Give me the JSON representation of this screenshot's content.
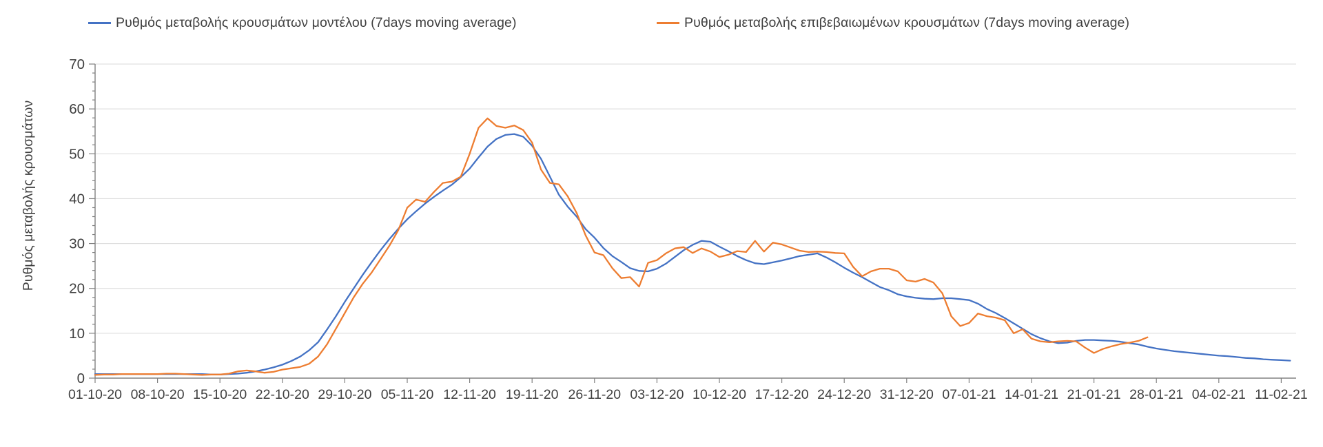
{
  "legend": {
    "items": [
      {
        "label": "Ρυθμός μεταβολής κρουσμάτων μοντέλου (7days moving average)",
        "color": "#4472C4"
      },
      {
        "label": "Ρυθμός μεταβολής επιβεβαιωμένων κρουσμάτων (7days moving average)",
        "color": "#ED7D31"
      }
    ]
  },
  "y_axis": {
    "title": "Ρυθμός μεταβολής κρουσμάτων",
    "ticks": [
      0,
      10,
      20,
      30,
      40,
      50,
      60,
      70
    ]
  },
  "x_axis": {
    "tick_labels": [
      "01-10-20",
      "08-10-20",
      "15-10-20",
      "22-10-20",
      "29-10-20",
      "05-11-20",
      "12-11-20",
      "19-11-20",
      "26-11-20",
      "03-12-20",
      "10-12-20",
      "17-12-20",
      "24-12-20",
      "31-12-20",
      "07-01-21",
      "14-01-21",
      "21-01-21",
      "28-01-21",
      "04-02-21",
      "11-02-21"
    ]
  },
  "colors": {
    "grid": "#D9D9D9",
    "axis": "#808080",
    "text": "#404040",
    "model_series": "#4472C4",
    "confirmed_series": "#ED7D31"
  },
  "chart_data": {
    "type": "line",
    "title": "",
    "xlabel": "",
    "ylabel": "Ρυθμός μεταβολής κρουσμάτων",
    "ylim": [
      0,
      70
    ],
    "y_ticks": [
      0,
      10,
      20,
      30,
      40,
      50,
      60,
      70
    ],
    "grid": "horizontal-only",
    "legend_position": "top",
    "x_start": "01-10-20",
    "x_step_days": 1,
    "x_tick_labels": [
      "01-10-20",
      "08-10-20",
      "15-10-20",
      "22-10-20",
      "29-10-20",
      "05-11-20",
      "12-11-20",
      "19-11-20",
      "26-11-20",
      "03-12-20",
      "10-12-20",
      "17-12-20",
      "24-12-20",
      "31-12-20",
      "07-01-21",
      "14-01-21",
      "21-01-21",
      "28-01-21",
      "04-02-21",
      "11-02-21"
    ],
    "series": [
      {
        "name": "Ρυθμός μεταβολής κρουσμάτων μοντέλου (7days moving average)",
        "color": "#4472C4",
        "values": [
          0.9,
          0.9,
          0.9,
          0.9,
          0.9,
          0.9,
          0.9,
          0.9,
          0.9,
          0.9,
          0.9,
          0.9,
          0.9,
          0.8,
          0.8,
          0.9,
          1.0,
          1.2,
          1.5,
          1.9,
          2.4,
          3.0,
          3.8,
          4.8,
          6.2,
          8.0,
          10.8,
          13.8,
          17.0,
          20.0,
          23.0,
          25.8,
          28.5,
          31.0,
          33.3,
          35.4,
          37.2,
          38.9,
          40.4,
          41.8,
          43.1,
          44.8,
          46.7,
          49.2,
          51.6,
          53.3,
          54.2,
          54.4,
          53.8,
          51.8,
          48.9,
          44.9,
          40.9,
          38.2,
          36.0,
          33.2,
          31.3,
          29.0,
          27.2,
          25.9,
          24.5,
          23.9,
          23.8,
          24.4,
          25.5,
          27.0,
          28.5,
          29.7,
          30.6,
          30.4,
          29.3,
          28.3,
          27.2,
          26.3,
          25.6,
          25.4,
          25.8,
          26.2,
          26.7,
          27.2,
          27.5,
          27.8,
          26.9,
          25.8,
          24.6,
          23.5,
          22.5,
          21.4,
          20.3,
          19.6,
          18.7,
          18.2,
          17.9,
          17.7,
          17.6,
          17.8,
          17.8,
          17.6,
          17.4,
          16.6,
          15.4,
          14.5,
          13.4,
          12.2,
          11.0,
          9.8,
          8.9,
          8.2,
          7.8,
          7.9,
          8.3,
          8.5,
          8.5,
          8.4,
          8.3,
          8.1,
          7.8,
          7.5,
          7.0,
          6.6,
          6.3,
          6.0,
          5.8,
          5.6,
          5.4,
          5.2,
          5.0,
          4.9,
          4.7,
          4.5,
          4.4,
          4.2,
          4.1,
          4.0,
          3.9
        ]
      },
      {
        "name": "Ρυθμός μεταβολής επιβεβαιωμένων κρουσμάτων (7days moving average)",
        "color": "#ED7D31",
        "values": [
          0.7,
          0.8,
          0.8,
          0.9,
          0.9,
          0.9,
          0.9,
          0.9,
          1.0,
          1.0,
          0.9,
          0.8,
          0.7,
          0.8,
          0.8,
          1.0,
          1.5,
          1.7,
          1.5,
          1.2,
          1.4,
          1.9,
          2.2,
          2.5,
          3.2,
          4.8,
          7.5,
          11.0,
          14.5,
          18.0,
          21.0,
          23.5,
          26.5,
          29.5,
          33.0,
          38.0,
          39.8,
          39.3,
          41.5,
          43.5,
          43.8,
          44.9,
          50.0,
          55.8,
          57.9,
          56.2,
          55.8,
          56.3,
          55.3,
          52.5,
          46.5,
          43.5,
          43.2,
          40.5,
          36.8,
          31.8,
          28.0,
          27.4,
          24.5,
          22.3,
          22.5,
          20.4,
          25.7,
          26.3,
          27.8,
          28.9,
          29.2,
          27.9,
          28.9,
          28.2,
          27.0,
          27.5,
          28.3,
          28.1,
          30.6,
          28.2,
          30.2,
          29.8,
          29.1,
          28.4,
          28.1,
          28.2,
          28.1,
          27.9,
          27.8,
          24.8,
          22.7,
          23.8,
          24.4,
          24.4,
          23.8,
          21.8,
          21.5,
          22.1,
          21.3,
          18.9,
          13.8,
          11.6,
          12.3,
          14.4,
          13.8,
          13.5,
          12.9,
          10.0,
          10.9,
          8.8,
          8.2,
          8.0,
          8.2,
          8.3,
          8.2,
          6.8,
          5.6,
          6.5,
          7.1,
          7.6,
          7.9,
          8.3,
          9.1
        ]
      }
    ]
  }
}
